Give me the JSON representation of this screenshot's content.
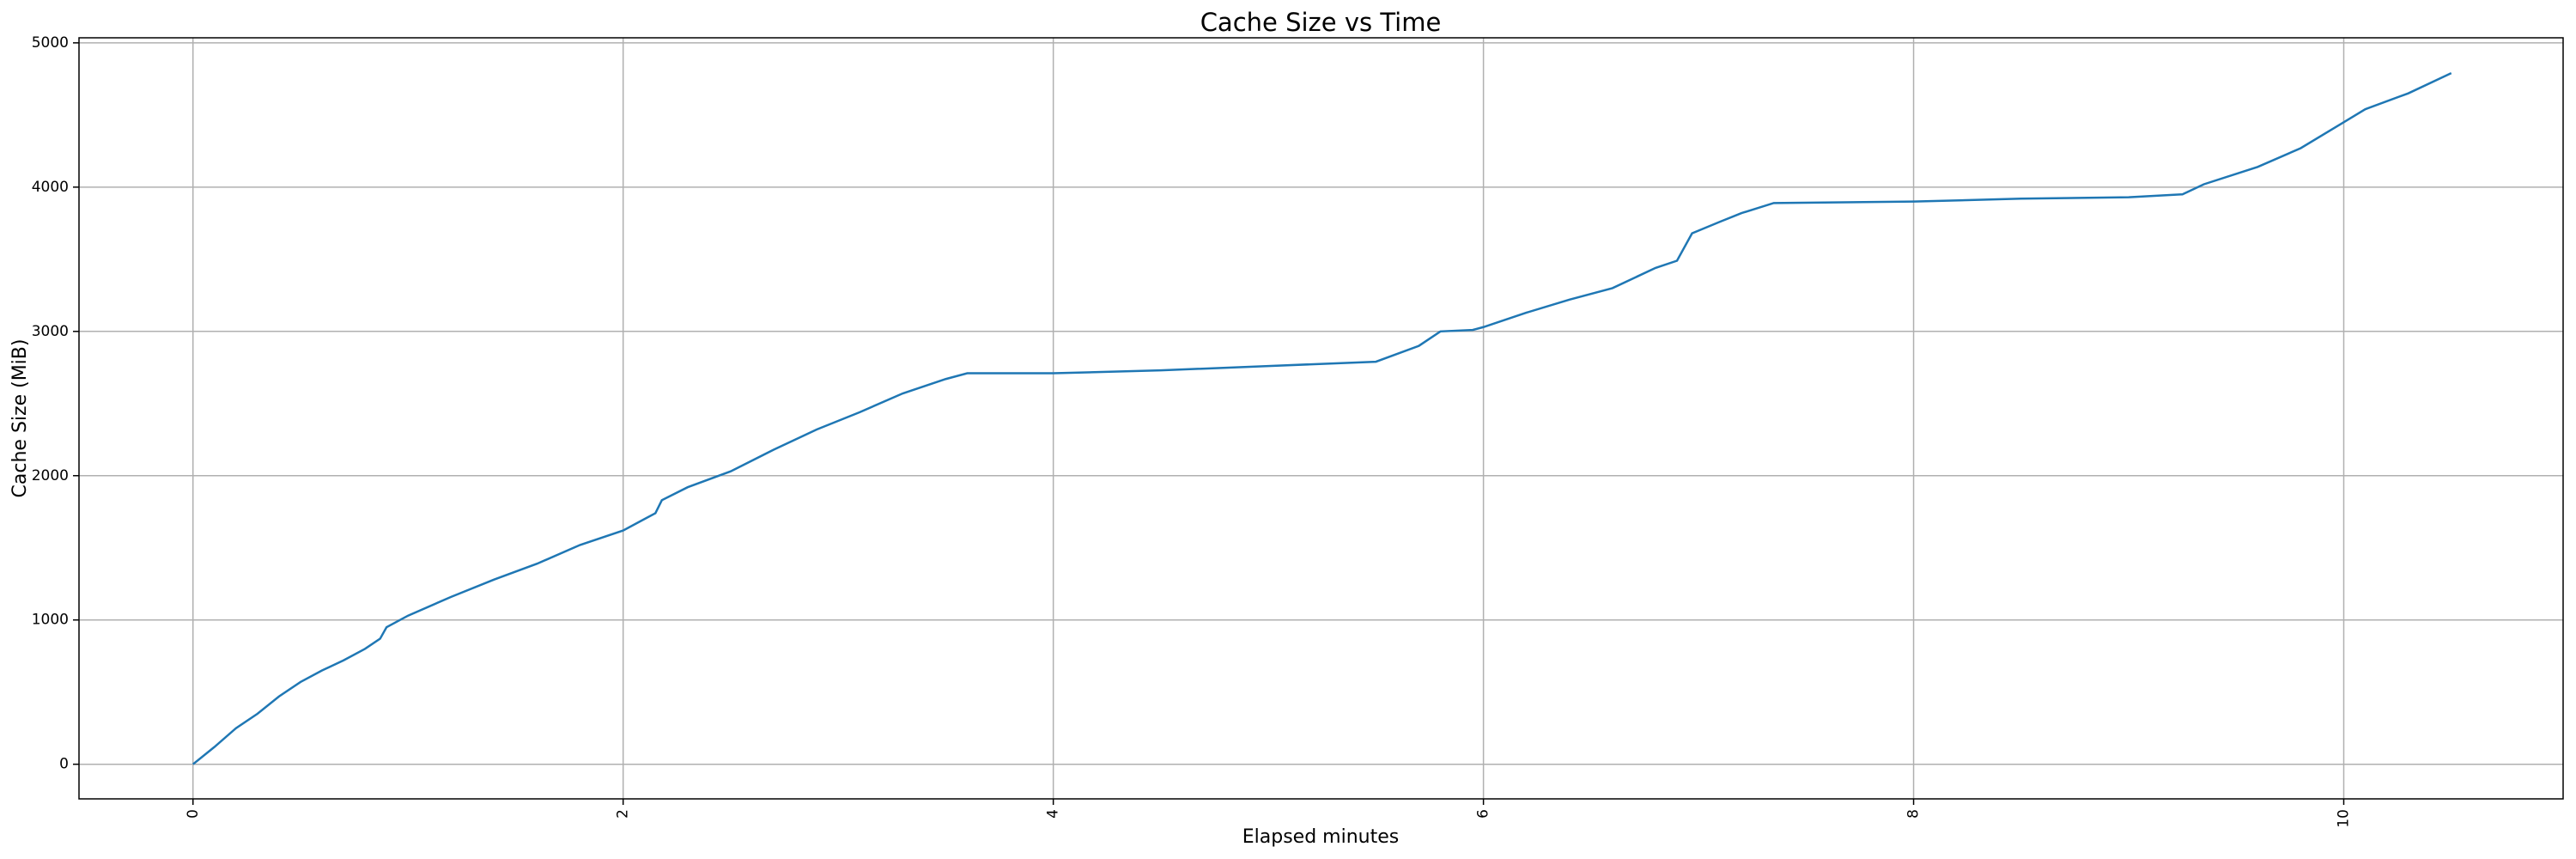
{
  "chart_data": {
    "type": "line",
    "title": "Cache Size vs Time",
    "x_label": "Elapsed minutes",
    "y_label": "Cache Size (MiB)",
    "x": [
      0,
      0.1,
      0.2,
      0.3,
      0.4,
      0.5,
      0.6,
      0.7,
      0.8,
      0.87,
      0.9,
      1.0,
      1.2,
      1.4,
      1.6,
      1.8,
      2.0,
      2.1,
      2.15,
      2.18,
      2.3,
      2.5,
      2.7,
      2.9,
      3.1,
      3.3,
      3.5,
      3.6,
      4.0,
      4.5,
      5.0,
      5.5,
      5.7,
      5.8,
      5.95,
      6.0,
      6.2,
      6.4,
      6.6,
      6.8,
      6.9,
      6.97,
      7.1,
      7.2,
      7.35,
      8.0,
      8.5,
      9.0,
      9.25,
      9.35,
      9.6,
      9.8,
      10.0,
      10.1,
      10.3,
      10.5
    ],
    "values": [
      0,
      120,
      250,
      350,
      470,
      570,
      650,
      720,
      800,
      870,
      950,
      1030,
      1160,
      1280,
      1390,
      1520,
      1620,
      1700,
      1740,
      1830,
      1920,
      2030,
      2180,
      2320,
      2440,
      2570,
      2670,
      2710,
      2710,
      2730,
      2760,
      2790,
      2900,
      3000,
      3010,
      3030,
      3130,
      3220,
      3300,
      3440,
      3490,
      3680,
      3760,
      3820,
      3890,
      3900,
      3920,
      3930,
      3950,
      4020,
      4140,
      4270,
      4450,
      4540,
      4650,
      4790
    ],
    "color": "#1f77b4",
    "xlim": [
      -0.53,
      11.02
    ],
    "xticks": [
      0,
      2,
      4,
      6,
      8,
      10
    ],
    "ylim": [
      -240,
      5035
    ],
    "yticks": [
      0,
      1000,
      2000,
      3000,
      4000,
      5000
    ],
    "grid": true
  }
}
